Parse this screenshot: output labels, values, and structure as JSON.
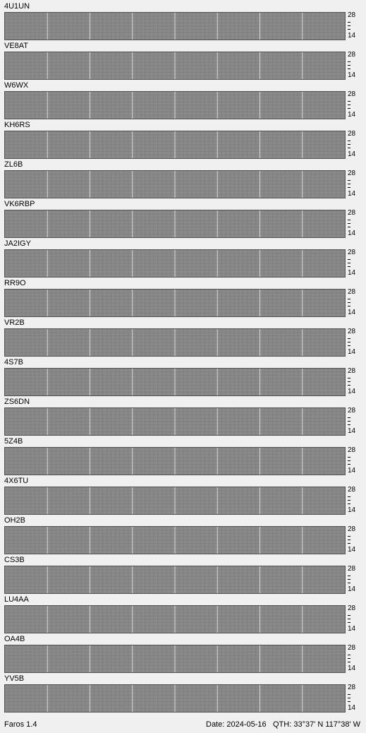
{
  "app": {
    "name": "Faros 1.4"
  },
  "status": {
    "date_text": "Date: 2024-05-16",
    "qth_text": "QTH: 33°37' N   117°38' W"
  },
  "axis": {
    "top_label": "28",
    "bottom_label": "14"
  },
  "colors": {
    "background": "#f0f0f0",
    "grid_bg": "#7f7f7f",
    "empty_cell": "#8a8a8a",
    "hour_line": "#d8d8d8",
    "strong": "#7ff0ff",
    "medium": "#8fb8f8",
    "weak": "#8080e0",
    "mint": "#a8f0c8"
  },
  "beacons": [
    {
      "name": "4U1UN"
    },
    {
      "name": "VE8AT"
    },
    {
      "name": "W6WX"
    },
    {
      "name": "KH6RS"
    },
    {
      "name": "ZL6B"
    },
    {
      "name": "VK6RBP"
    },
    {
      "name": "JA2IGY"
    },
    {
      "name": "RR9O"
    },
    {
      "name": "VR2B"
    },
    {
      "name": "4S7B"
    },
    {
      "name": "ZS6DN"
    },
    {
      "name": "5Z4B"
    },
    {
      "name": "4X6TU"
    },
    {
      "name": "OH2B"
    },
    {
      "name": "CS3B"
    },
    {
      "name": "LU4AA"
    },
    {
      "name": "OA4B"
    },
    {
      "name": "YV5B"
    }
  ]
}
